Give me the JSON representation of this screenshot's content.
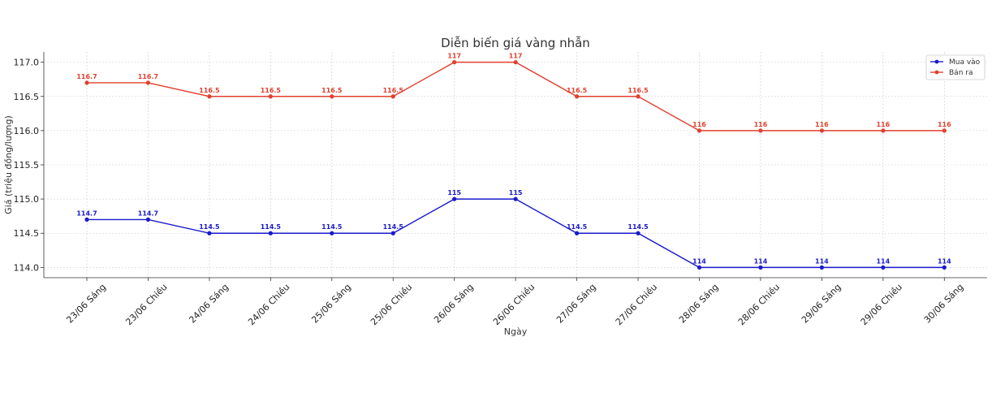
{
  "chart_data": {
    "type": "line",
    "title": "Diễn biến giá vàng nhẫn",
    "xlabel": "Ngày",
    "ylabel": "Giá (triệu đồng/lượng)",
    "ylim": [
      113.85,
      117.15
    ],
    "yticks": [
      "114.0",
      "114.5",
      "115.0",
      "115.5",
      "116.0",
      "116.5",
      "117.0"
    ],
    "ytick_values": [
      114.0,
      114.5,
      115.0,
      115.5,
      116.0,
      116.5,
      117.0
    ],
    "grid": true,
    "legend_position": "top-right",
    "categories": [
      "23/06 Sáng",
      "23/06 Chiều",
      "24/06 Sáng",
      "24/06 Chiều",
      "25/06 Sáng",
      "25/06 Chiều",
      "26/06 Sáng",
      "26/06 Chiều",
      "27/06 Sáng",
      "27/06 Chiều",
      "28/06 Sáng",
      "28/06 Chiều",
      "29/06 Sáng",
      "29/06 Chiều",
      "30/06 Sáng"
    ],
    "series": [
      {
        "name": "Mua vào",
        "color": "#1a1acc",
        "values": [
          114.7,
          114.7,
          114.5,
          114.5,
          114.5,
          114.5,
          115,
          115,
          114.5,
          114.5,
          114,
          114,
          114,
          114,
          114
        ],
        "labels": [
          "114.7",
          "114.7",
          "114.5",
          "114.5",
          "114.5",
          "114.5",
          "115",
          "115",
          "114.5",
          "114.5",
          "114",
          "114",
          "114",
          "114",
          "114"
        ]
      },
      {
        "name": "Bán ra",
        "color": "#e0402f",
        "values": [
          116.7,
          116.7,
          116.5,
          116.5,
          116.5,
          116.5,
          117,
          117,
          116.5,
          116.5,
          116,
          116,
          116,
          116,
          116
        ],
        "labels": [
          "116.7",
          "116.7",
          "116.5",
          "116.5",
          "116.5",
          "116.5",
          "117",
          "117",
          "116.5",
          "116.5",
          "116",
          "116",
          "116",
          "116",
          "116"
        ]
      }
    ]
  }
}
